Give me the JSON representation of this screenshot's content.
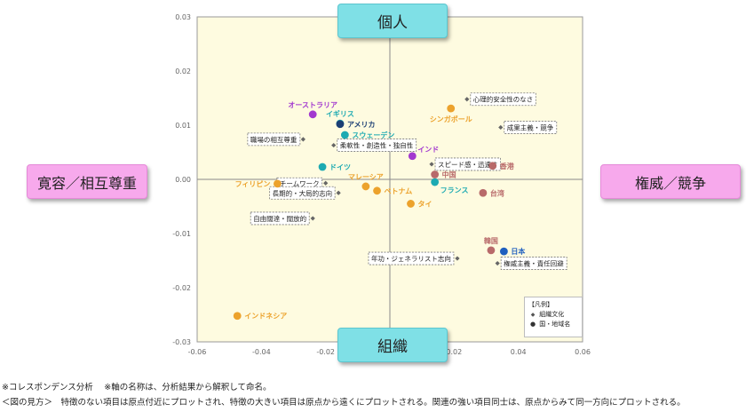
{
  "axis_boxes": {
    "top": "個人",
    "bottom": "組織",
    "left": "寛容／相互尊重",
    "right": "権威／競争"
  },
  "legend": {
    "title": "【凡例】",
    "items": [
      {
        "symbol": "◆",
        "label": "組織文化"
      },
      {
        "symbol": "●",
        "label": "国・地域名"
      }
    ]
  },
  "footnotes": [
    "※コレスポンデンス分析　 ※軸の名称は、分析結果から解釈して命名。",
    "＜図の見方＞　特徴のない項目は原点付近にプロットされ、特徴の大きい項目は原点から遠くにプロットされる。関連の強い項目同士は、原点からみて同一方向にプロットされる。"
  ],
  "colors": {
    "plot_bg": "#fefbe0",
    "purple": "#a238cf",
    "teal": "#1daab2",
    "orange": "#eca22c",
    "redbrown": "#b86a6a",
    "blue": "#1f5fbf",
    "navy": "#1c3f74",
    "attr_marker": "#666666"
  },
  "chart_data": {
    "type": "scatter",
    "xlim": [
      -0.06,
      0.06
    ],
    "ylim": [
      -0.03,
      0.03
    ],
    "x_ticks": [
      "-0.06",
      "-0.04",
      "-0.02",
      "0",
      "0.02",
      "0.04",
      "0.06"
    ],
    "y_ticks": [
      "0.03",
      "0.02",
      "0.01",
      "0.00",
      "-0.01",
      "-0.02",
      "-0.03"
    ],
    "grid": false,
    "legend_position": "bottom-right",
    "series": [
      {
        "name": "国・地域名",
        "points": [
          {
            "label": "オーストラリア",
            "x": -0.024,
            "y": 0.012,
            "color": "purple",
            "label_pos": "above"
          },
          {
            "label": "インド",
            "x": 0.007,
            "y": 0.0043,
            "color": "purple",
            "label_pos": "above-right"
          },
          {
            "label": "イギリス",
            "x": -0.0155,
            "y": 0.0103,
            "color": "teal",
            "label_pos": "above"
          },
          {
            "label": "スウェーデン",
            "x": -0.014,
            "y": 0.0082,
            "color": "teal",
            "label_pos": "right"
          },
          {
            "label": "ドイツ",
            "x": -0.021,
            "y": 0.0023,
            "color": "teal",
            "label_pos": "right"
          },
          {
            "label": "フランス",
            "x": 0.014,
            "y": -0.0005,
            "color": "teal",
            "label_pos": "below-right"
          },
          {
            "label": "アメリカ",
            "x": -0.0155,
            "y": 0.0102,
            "color": "navy",
            "label_pos": "right"
          },
          {
            "label": "シンガポール",
            "x": 0.019,
            "y": 0.0131,
            "color": "orange",
            "label_pos": "below"
          },
          {
            "label": "フィリピン",
            "x": -0.035,
            "y": -0.0008,
            "color": "orange",
            "label_pos": "left"
          },
          {
            "label": "マレーシア",
            "x": -0.0075,
            "y": -0.0013,
            "color": "orange",
            "label_pos": "above"
          },
          {
            "label": "ベトナム",
            "x": -0.004,
            "y": -0.0021,
            "color": "orange",
            "label_pos": "right"
          },
          {
            "label": "タイ",
            "x": 0.0065,
            "y": -0.0045,
            "color": "orange",
            "label_pos": "right"
          },
          {
            "label": "インドネシア",
            "x": -0.0475,
            "y": -0.0252,
            "color": "orange",
            "label_pos": "right"
          },
          {
            "label": "中国",
            "x": 0.014,
            "y": 0.0009,
            "color": "redbrown",
            "label_pos": "right"
          },
          {
            "label": "香港",
            "x": 0.032,
            "y": 0.0025,
            "color": "redbrown",
            "label_pos": "right"
          },
          {
            "label": "台湾",
            "x": 0.029,
            "y": -0.0025,
            "color": "redbrown",
            "label_pos": "right"
          },
          {
            "label": "韓国",
            "x": 0.0315,
            "y": -0.0131,
            "color": "redbrown",
            "label_pos": "above"
          },
          {
            "label": "日本",
            "x": 0.0355,
            "y": -0.0133,
            "color": "blue",
            "label_pos": "right"
          }
        ]
      },
      {
        "name": "組織文化",
        "points": [
          {
            "label": "心理的安全性のなさ",
            "x": 0.024,
            "y": 0.0148,
            "label_pos": "right"
          },
          {
            "label": "成果主義・競争",
            "x": 0.0345,
            "y": 0.0096,
            "label_pos": "right"
          },
          {
            "label": "職場の相互尊重",
            "x": -0.027,
            "y": 0.0074,
            "label_pos": "left"
          },
          {
            "label": "柔軟性・創造性・独自性",
            "x": -0.0175,
            "y": 0.0063,
            "label_pos": "right"
          },
          {
            "label": "スピード感・迅速さ",
            "x": 0.013,
            "y": 0.0028,
            "label_pos": "right"
          },
          {
            "label": "チームワーク",
            "x": -0.02,
            "y": -0.0007,
            "label_pos": "left"
          },
          {
            "label": "長期的・大局的志向",
            "x": -0.016,
            "y": -0.0025,
            "label_pos": "left"
          },
          {
            "label": "自由闊達・闊放的",
            "x": -0.024,
            "y": -0.0072,
            "label_pos": "left"
          },
          {
            "label": "年功・ジェネラリスト志向",
            "x": 0.021,
            "y": -0.0146,
            "label_pos": "left"
          },
          {
            "label": "権威主義・責任回避",
            "x": 0.0335,
            "y": -0.0155,
            "label_pos": "right"
          }
        ]
      }
    ]
  }
}
